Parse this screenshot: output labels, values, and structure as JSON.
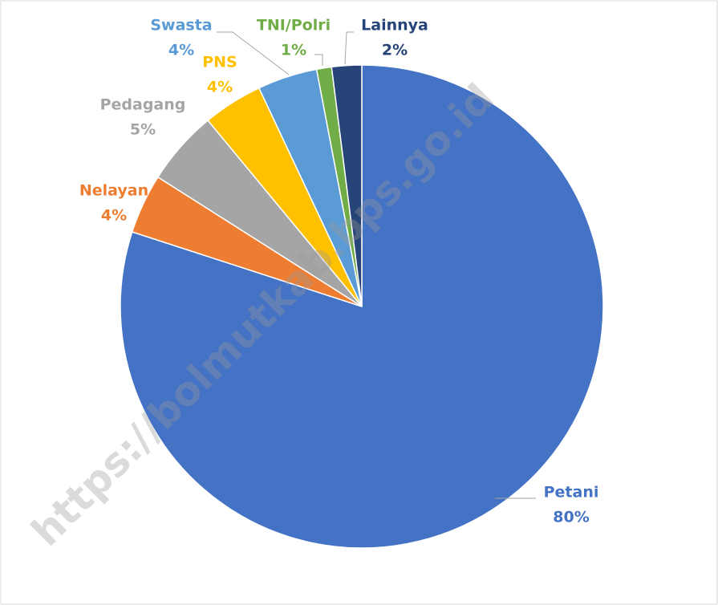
{
  "chart_data": {
    "type": "pie",
    "categories": [
      "Petani",
      "Nelayan",
      "Pedagang",
      "PNS",
      "Swasta",
      "TNI/Polri",
      "Lainnya"
    ],
    "values": [
      80,
      4,
      5,
      4,
      4,
      1,
      2
    ],
    "value_labels": [
      "80%",
      "4%",
      "5%",
      "4%",
      "4%",
      "1%",
      "2%"
    ],
    "colors": [
      "#4472c4",
      "#ed7d31",
      "#a5a5a5",
      "#ffc000",
      "#5b9bd5",
      "#70ad47",
      "#264478"
    ],
    "watermark": "https://bolmutkab.bps.go.id"
  }
}
